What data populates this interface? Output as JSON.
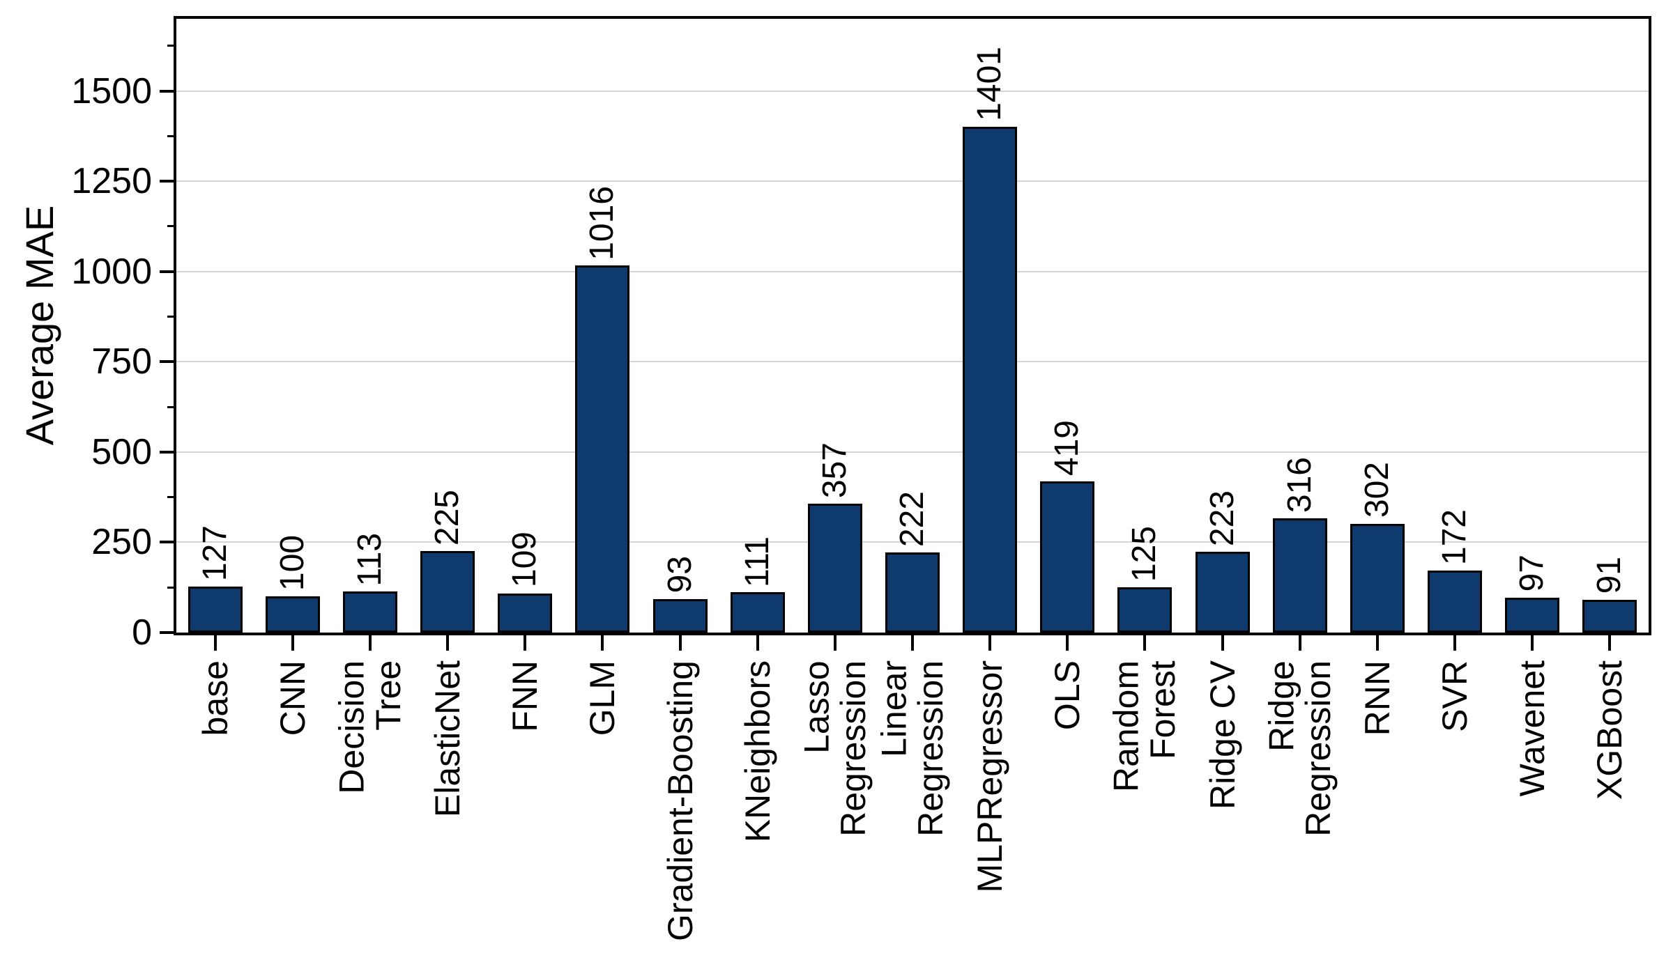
{
  "chart_data": {
    "type": "bar",
    "title": "",
    "xlabel": "",
    "ylabel": "Average MAE",
    "ylim": [
      0,
      1700
    ],
    "y_major_ticks": [
      0,
      250,
      500,
      750,
      1000,
      1250,
      1500
    ],
    "y_minor_ticks": [
      125,
      375,
      625,
      875,
      1125,
      1375,
      1625
    ],
    "grid": "horizontal-major-only",
    "legend_position": "none",
    "value_labels_rotation_deg": 90,
    "category_labels_rotation_deg": 90,
    "bar_color": "#0e3a6e",
    "bar_edge_color": "#000000",
    "gridline_color": "#d4d4d4",
    "axis_color": "#000000",
    "categories": [
      "base",
      "CNN",
      "Decision\nTree",
      "ElasticNet",
      "FNN",
      "GLM",
      "Gradient-Boosting",
      "KNeighbors",
      "Lasso\nRegression",
      "Linear\nRegression",
      "MLPRegressor",
      "OLS",
      "Random\nForest",
      "Ridge CV",
      "Ridge\nRegression",
      "RNN",
      "SVR",
      "Wavenet",
      "XGBoost"
    ],
    "values": [
      127,
      100,
      113,
      225,
      109,
      1016,
      93,
      111,
      357,
      222,
      1401,
      419,
      125,
      223,
      316,
      302,
      172,
      97,
      91
    ]
  }
}
